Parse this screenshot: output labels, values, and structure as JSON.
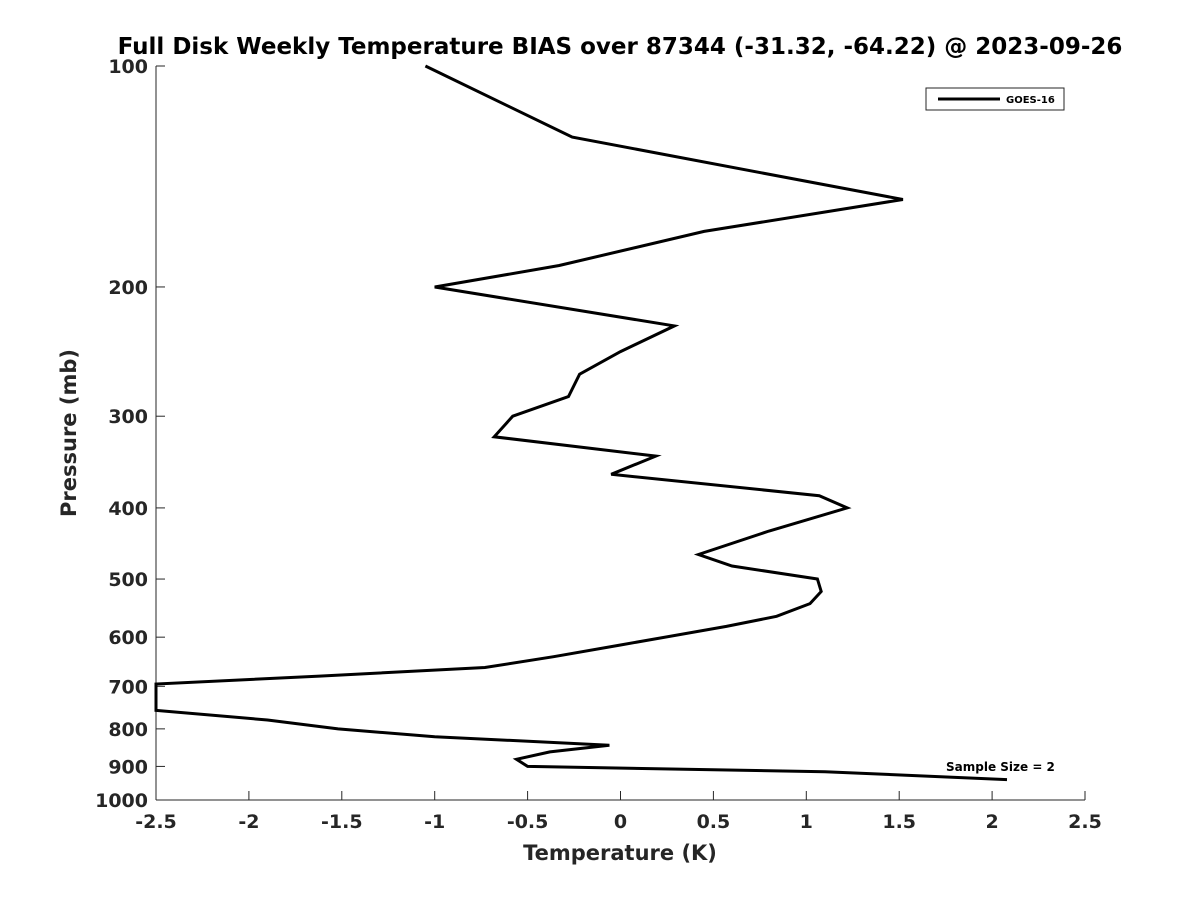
{
  "chart_data": {
    "type": "line",
    "title": "Full Disk Weekly Temperature BIAS over 87344 (-31.32, -64.22) @ 2023-09-26",
    "xlabel": "Temperature (K)",
    "ylabel": "Pressure (mb)",
    "xlim": [
      -2.5,
      2.5
    ],
    "ylim": [
      100,
      1000
    ],
    "y_scale": "log",
    "y_reversed": true,
    "x_ticks": [
      "-2.5",
      "-2",
      "-1.5",
      "-1",
      "-0.5",
      "0",
      "0.5",
      "1",
      "1.5",
      "2",
      "2.5"
    ],
    "y_ticks": [
      "100",
      "200",
      "300",
      "400",
      "500",
      "600",
      "700",
      "800",
      "900",
      "1000"
    ],
    "grid": false,
    "legend_position": "top-right",
    "annotation": "Sample Size = 2",
    "series": [
      {
        "name": "GOES-16",
        "color": "#000000",
        "points": [
          {
            "x": -1.05,
            "y": 100
          },
          {
            "x": -0.26,
            "y": 125
          },
          {
            "x": 1.52,
            "y": 152
          },
          {
            "x": 0.45,
            "y": 168
          },
          {
            "x": -0.33,
            "y": 187
          },
          {
            "x": -1.0,
            "y": 200
          },
          {
            "x": 0.29,
            "y": 226
          },
          {
            "x": 0.0,
            "y": 245
          },
          {
            "x": -0.22,
            "y": 263
          },
          {
            "x": -0.28,
            "y": 282
          },
          {
            "x": -0.58,
            "y": 300
          },
          {
            "x": -0.68,
            "y": 320
          },
          {
            "x": 0.19,
            "y": 340
          },
          {
            "x": -0.05,
            "y": 360
          },
          {
            "x": 1.07,
            "y": 385
          },
          {
            "x": 1.22,
            "y": 400
          },
          {
            "x": 0.8,
            "y": 430
          },
          {
            "x": 0.42,
            "y": 463
          },
          {
            "x": 0.6,
            "y": 480
          },
          {
            "x": 1.06,
            "y": 500
          },
          {
            "x": 1.08,
            "y": 520
          },
          {
            "x": 1.02,
            "y": 540
          },
          {
            "x": 0.84,
            "y": 562
          },
          {
            "x": 0.57,
            "y": 580
          },
          {
            "x": 0.0,
            "y": 615
          },
          {
            "x": -0.36,
            "y": 638
          },
          {
            "x": -0.73,
            "y": 660
          },
          {
            "x": -1.62,
            "y": 678
          },
          {
            "x": -2.5,
            "y": 695
          },
          {
            "x": -2.5,
            "y": 755
          },
          {
            "x": -1.9,
            "y": 778
          },
          {
            "x": -1.52,
            "y": 800
          },
          {
            "x": -1.0,
            "y": 820
          },
          {
            "x": -0.06,
            "y": 842
          },
          {
            "x": -0.38,
            "y": 860
          },
          {
            "x": -0.56,
            "y": 880
          },
          {
            "x": -0.5,
            "y": 900
          },
          {
            "x": 1.1,
            "y": 915
          },
          {
            "x": 2.08,
            "y": 938
          }
        ]
      }
    ]
  }
}
